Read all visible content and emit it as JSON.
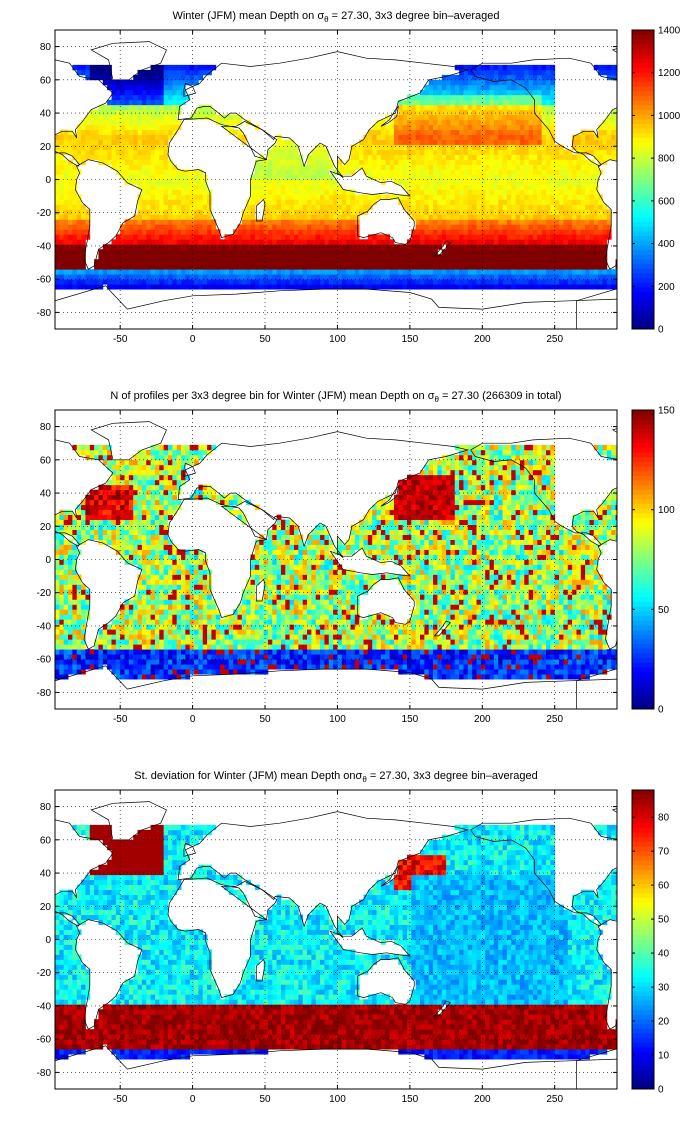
{
  "chart_data": [
    {
      "type": "heatmap",
      "title_pre": "Winter (JFM) mean Depth on ",
      "title_sym": "σ",
      "title_sub": "θ",
      "title_post": " = 27.30, 3x3 degree bin–averaged",
      "xlabel": "",
      "ylabel": "",
      "xlim": [
        -95,
        293
      ],
      "ylim": [
        -90,
        90
      ],
      "xticks": [
        -50,
        0,
        50,
        100,
        150,
        200,
        250
      ],
      "yticks": [
        80,
        60,
        40,
        20,
        0,
        -20,
        -40,
        -60,
        -80
      ],
      "grid": true,
      "colormap": "jet",
      "clim": [
        0,
        1400
      ],
      "colorbar_ticks": [
        0,
        200,
        400,
        600,
        800,
        1000,
        1200,
        1400
      ],
      "field": "depth"
    },
    {
      "type": "heatmap",
      "title_pre": "N of profiles per 3x3 degree bin for Winter (JFM) mean Depth on ",
      "title_sym": "σ",
      "title_sub": "θ",
      "title_post": " = 27.30 (266309 in total)",
      "xlabel": "",
      "ylabel": "",
      "xlim": [
        -95,
        293
      ],
      "ylim": [
        -90,
        90
      ],
      "xticks": [
        -50,
        0,
        50,
        100,
        150,
        200,
        250
      ],
      "yticks": [
        80,
        60,
        40,
        20,
        0,
        -20,
        -40,
        -60,
        -80
      ],
      "grid": true,
      "colormap": "jet",
      "clim": [
        0,
        150
      ],
      "colorbar_ticks": [
        0,
        50,
        100,
        150
      ],
      "field": "count"
    },
    {
      "type": "heatmap",
      "title_pre": "St. deviation for Winter (JFM) mean Depth on",
      "title_sym": "σ",
      "title_sub": "θ",
      "title_post": " = 27.30, 3x3 degree bin–averaged",
      "xlabel": "",
      "ylabel": "",
      "xlim": [
        -95,
        293
      ],
      "ylim": [
        -90,
        90
      ],
      "xticks": [
        -50,
        0,
        50,
        100,
        150,
        200,
        250
      ],
      "yticks": [
        80,
        60,
        40,
        20,
        0,
        -20,
        -40,
        -60,
        -80
      ],
      "grid": true,
      "colormap": "jet",
      "clim": [
        0,
        88
      ],
      "colorbar_ticks": [
        0,
        10,
        20,
        30,
        40,
        50,
        60,
        70,
        80
      ],
      "field": "std"
    }
  ]
}
